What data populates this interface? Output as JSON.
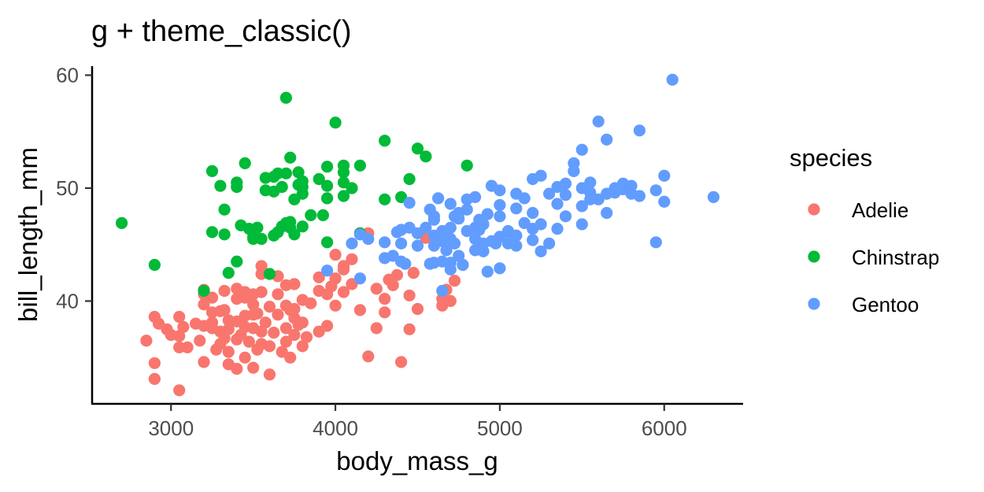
{
  "chart_data": {
    "type": "scatter",
    "title": "g + theme_classic()",
    "xlabel": "body_mass_g",
    "ylabel": "bill_length_mm",
    "xlim": [
      2520,
      6480
    ],
    "ylim": [
      30.9,
      60.8
    ],
    "xticks": [
      3000,
      4000,
      5000,
      6000
    ],
    "xtick_labels": [
      "3000",
      "4000",
      "5000",
      "6000"
    ],
    "yticks": [
      40,
      50,
      60
    ],
    "ytick_labels": [
      "40",
      "50",
      "60"
    ],
    "grid": false,
    "legend": {
      "title": "species",
      "position": "right"
    },
    "series": [
      {
        "name": "Adelie",
        "color": "#F8766D",
        "points": [
          [
            2850,
            36.5
          ],
          [
            2900,
            33.1
          ],
          [
            2900,
            34.5
          ],
          [
            2900,
            38.6
          ],
          [
            2925,
            38.0
          ],
          [
            2975,
            37.5
          ],
          [
            3000,
            37.0
          ],
          [
            3050,
            32.1
          ],
          [
            3050,
            35.9
          ],
          [
            3050,
            36.9
          ],
          [
            3050,
            38.6
          ],
          [
            3075,
            37.7
          ],
          [
            3100,
            35.9
          ],
          [
            3150,
            38.0
          ],
          [
            3175,
            36.5
          ],
          [
            3200,
            34.6
          ],
          [
            3200,
            37.8
          ],
          [
            3200,
            39.7
          ],
          [
            3200,
            40.6
          ],
          [
            3250,
            37.6
          ],
          [
            3250,
            38.1
          ],
          [
            3250,
            39.0
          ],
          [
            3250,
            40.3
          ],
          [
            3275,
            35.7
          ],
          [
            3300,
            36.2
          ],
          [
            3300,
            37.3
          ],
          [
            3300,
            39.1
          ],
          [
            3325,
            36.7
          ],
          [
            3325,
            39.2
          ],
          [
            3325,
            40.9
          ],
          [
            3350,
            34.4
          ],
          [
            3350,
            35.5
          ],
          [
            3350,
            37.5
          ],
          [
            3350,
            38.3
          ],
          [
            3400,
            34.0
          ],
          [
            3400,
            36.6
          ],
          [
            3400,
            38.2
          ],
          [
            3400,
            40.2
          ],
          [
            3400,
            41.1
          ],
          [
            3425,
            37.0
          ],
          [
            3450,
            35.0
          ],
          [
            3450,
            37.7
          ],
          [
            3450,
            38.7
          ],
          [
            3450,
            40.3
          ],
          [
            3475,
            36.4
          ],
          [
            3500,
            34.1
          ],
          [
            3500,
            37.6
          ],
          [
            3500,
            38.8
          ],
          [
            3500,
            39.7
          ],
          [
            3500,
            40.6
          ],
          [
            3525,
            35.7
          ],
          [
            3525,
            38.9
          ],
          [
            3550,
            36.2
          ],
          [
            3550,
            37.3
          ],
          [
            3550,
            40.8
          ],
          [
            3550,
            42.4
          ],
          [
            3575,
            38.1
          ],
          [
            3600,
            33.5
          ],
          [
            3600,
            36.0
          ],
          [
            3600,
            39.5
          ],
          [
            3625,
            37.2
          ],
          [
            3650,
            38.8
          ],
          [
            3650,
            40.6
          ],
          [
            3675,
            35.5
          ],
          [
            3700,
            36.4
          ],
          [
            3700,
            37.6
          ],
          [
            3700,
            39.6
          ],
          [
            3700,
            41.4
          ],
          [
            3725,
            39.2
          ],
          [
            3725,
            35.0
          ],
          [
            3750,
            37.0
          ],
          [
            3750,
            38.5
          ],
          [
            3750,
            39.3
          ],
          [
            3775,
            37.9
          ],
          [
            3800,
            36.0
          ],
          [
            3800,
            38.1
          ],
          [
            3800,
            40.1
          ],
          [
            3825,
            36.8
          ],
          [
            3850,
            39.8
          ],
          [
            3900,
            37.3
          ],
          [
            3900,
            40.9
          ],
          [
            3950,
            37.8
          ],
          [
            3950,
            40.6
          ],
          [
            3975,
            41.3
          ],
          [
            4000,
            39.6
          ],
          [
            4000,
            42.0
          ],
          [
            4050,
            40.8
          ],
          [
            4050,
            43.1
          ],
          [
            4100,
            41.5
          ],
          [
            4150,
            39.2
          ],
          [
            4200,
            35.1
          ],
          [
            4250,
            37.6
          ],
          [
            4300,
            39.0
          ],
          [
            4300,
            40.2
          ],
          [
            4350,
            41.4
          ],
          [
            4400,
            34.6
          ],
          [
            4450,
            37.5
          ],
          [
            4475,
            42.5
          ],
          [
            4550,
            45.6
          ],
          [
            4650,
            39.6
          ],
          [
            4675,
            41.0
          ],
          [
            4700,
            40.0
          ],
          [
            4725,
            41.8
          ],
          [
            4775,
            43.2
          ],
          [
            3200,
            41.0
          ],
          [
            3450,
            40.8
          ],
          [
            3550,
            43.1
          ],
          [
            3650,
            42.2
          ],
          [
            3750,
            41.5
          ],
          [
            3900,
            42.1
          ],
          [
            4000,
            44.1
          ],
          [
            4050,
            42.8
          ],
          [
            4100,
            43.7
          ],
          [
            4200,
            46.0
          ],
          [
            4250,
            41.1
          ],
          [
            4325,
            41.9
          ],
          [
            4375,
            42.3
          ],
          [
            4450,
            40.5
          ],
          [
            4500,
            39.3
          ],
          [
            4650,
            40.2
          ]
        ]
      },
      {
        "name": "Chinstrap",
        "color": "#00BA38",
        "points": [
          [
            2700,
            46.9
          ],
          [
            2900,
            43.2
          ],
          [
            3200,
            40.9
          ],
          [
            3250,
            46.1
          ],
          [
            3250,
            51.5
          ],
          [
            3300,
            50.2
          ],
          [
            3325,
            48.1
          ],
          [
            3325,
            45.9
          ],
          [
            3350,
            42.5
          ],
          [
            3400,
            43.5
          ],
          [
            3400,
            50.1
          ],
          [
            3400,
            50.5
          ],
          [
            3425,
            46.7
          ],
          [
            3450,
            52.2
          ],
          [
            3475,
            46.4
          ],
          [
            3500,
            45.5
          ],
          [
            3525,
            46.5
          ],
          [
            3550,
            45.5
          ],
          [
            3575,
            50.9
          ],
          [
            3600,
            42.4
          ],
          [
            3625,
            45.8
          ],
          [
            3625,
            49.7
          ],
          [
            3650,
            46.1
          ],
          [
            3650,
            51.3
          ],
          [
            3675,
            46.6
          ],
          [
            3675,
            50.1
          ],
          [
            3700,
            46.9
          ],
          [
            3700,
            51.3
          ],
          [
            3700,
            58.0
          ],
          [
            3725,
            47.0
          ],
          [
            3725,
            52.7
          ],
          [
            3750,
            45.9
          ],
          [
            3750,
            49.0
          ],
          [
            3775,
            51.4
          ],
          [
            3775,
            50.3
          ],
          [
            3800,
            49.5
          ],
          [
            3800,
            50.6
          ],
          [
            3800,
            46.6
          ],
          [
            3850,
            47.6
          ],
          [
            3900,
            50.8
          ],
          [
            3925,
            47.6
          ],
          [
            3950,
            45.2
          ],
          [
            3950,
            49.1
          ],
          [
            3950,
            51.9
          ],
          [
            4000,
            55.8
          ],
          [
            4050,
            50.5
          ],
          [
            4050,
            52.0
          ],
          [
            4050,
            49.3
          ],
          [
            4100,
            50.0
          ],
          [
            4150,
            52.0
          ],
          [
            4150,
            46.0
          ],
          [
            4300,
            49.0
          ],
          [
            4300,
            54.2
          ],
          [
            4400,
            49.2
          ],
          [
            4450,
            50.8
          ],
          [
            4500,
            53.5
          ],
          [
            4550,
            52.8
          ],
          [
            4800,
            52.0
          ],
          [
            3500,
            45.7
          ],
          [
            3725,
            46.5
          ],
          [
            3950,
            50.2
          ],
          [
            4050,
            51.4
          ],
          [
            3625,
            51.0
          ],
          [
            3800,
            50.1
          ],
          [
            3575,
            49.8
          ]
        ]
      },
      {
        "name": "Gentoo",
        "color": "#619CFF",
        "points": [
          [
            3950,
            42.7
          ],
          [
            4100,
            45.1
          ],
          [
            4150,
            42.0
          ],
          [
            4150,
            45.9
          ],
          [
            4200,
            45.5
          ],
          [
            4300,
            43.8
          ],
          [
            4300,
            45.2
          ],
          [
            4350,
            44.0
          ],
          [
            4375,
            46.1
          ],
          [
            4400,
            46.3
          ],
          [
            4400,
            45.1
          ],
          [
            4400,
            43.5
          ],
          [
            4425,
            43.3
          ],
          [
            4450,
            46.5
          ],
          [
            4450,
            48.7
          ],
          [
            4500,
            46.0
          ],
          [
            4500,
            44.9
          ],
          [
            4550,
            46.5
          ],
          [
            4575,
            43.3
          ],
          [
            4575,
            48.1
          ],
          [
            4600,
            43.4
          ],
          [
            4600,
            44.9
          ],
          [
            4600,
            45.8
          ],
          [
            4600,
            47.2
          ],
          [
            4625,
            45.4
          ],
          [
            4625,
            49.1
          ],
          [
            4650,
            40.9
          ],
          [
            4650,
            43.5
          ],
          [
            4650,
            45.3
          ],
          [
            4650,
            46.2
          ],
          [
            4675,
            44.5
          ],
          [
            4700,
            43.4
          ],
          [
            4700,
            45.5
          ],
          [
            4700,
            46.5
          ],
          [
            4700,
            42.8
          ],
          [
            4725,
            47.5
          ],
          [
            4725,
            45.1
          ],
          [
            4750,
            47.8
          ],
          [
            4750,
            44.0
          ],
          [
            4775,
            43.2
          ],
          [
            4800,
            46.2
          ],
          [
            4800,
            48.1
          ],
          [
            4850,
            44.5
          ],
          [
            4850,
            45.5
          ],
          [
            4850,
            46.5
          ],
          [
            4875,
            47.2
          ],
          [
            4900,
            46.8
          ],
          [
            4900,
            45.1
          ],
          [
            4900,
            44.4
          ],
          [
            4925,
            47.7
          ],
          [
            4925,
            42.6
          ],
          [
            4950,
            45.3
          ],
          [
            4975,
            45.1
          ],
          [
            5000,
            47.5
          ],
          [
            5000,
            45.7
          ],
          [
            5000,
            48.5
          ],
          [
            5000,
            42.9
          ],
          [
            5050,
            46.1
          ],
          [
            5050,
            45.1
          ],
          [
            5050,
            46.2
          ],
          [
            5100,
            45.8
          ],
          [
            5100,
            48.2
          ],
          [
            5100,
            44.9
          ],
          [
            5150,
            46.9
          ],
          [
            5150,
            49.1
          ],
          [
            5200,
            47.8
          ],
          [
            5200,
            50.8
          ],
          [
            5200,
            45.4
          ],
          [
            5250,
            44.4
          ],
          [
            5250,
            46.8
          ],
          [
            5300,
            49.5
          ],
          [
            5300,
            45.1
          ],
          [
            5350,
            48.6
          ],
          [
            5350,
            46.4
          ],
          [
            5400,
            50.4
          ],
          [
            5400,
            49.4
          ],
          [
            5400,
            47.5
          ],
          [
            5450,
            52.2
          ],
          [
            5500,
            48.4
          ],
          [
            5500,
            50.0
          ],
          [
            5500,
            53.4
          ],
          [
            5500,
            46.8
          ],
          [
            5550,
            49.6
          ],
          [
            5550,
            50.5
          ],
          [
            5600,
            55.9
          ],
          [
            5600,
            49.0
          ],
          [
            5650,
            49.5
          ],
          [
            5650,
            54.3
          ],
          [
            5650,
            47.8
          ],
          [
            5700,
            50.0
          ],
          [
            5700,
            49.6
          ],
          [
            5750,
            50.4
          ],
          [
            5800,
            50.2
          ],
          [
            5800,
            49.5
          ],
          [
            5850,
            55.1
          ],
          [
            5850,
            49.3
          ],
          [
            5950,
            45.2
          ],
          [
            5950,
            49.8
          ],
          [
            6000,
            51.1
          ],
          [
            6000,
            48.8
          ],
          [
            6050,
            59.6
          ],
          [
            6300,
            49.2
          ],
          [
            5250,
            51.1
          ],
          [
            5100,
            49.5
          ],
          [
            4950,
            50.2
          ],
          [
            4800,
            49.0
          ],
          [
            4650,
            46.0
          ],
          [
            4750,
            47.3
          ],
          [
            4875,
            46.3
          ],
          [
            5200,
            46.4
          ],
          [
            5350,
            50.1
          ],
          [
            5450,
            51.5
          ],
          [
            5550,
            49.0
          ],
          [
            5750,
            49.9
          ],
          [
            4600,
            47.5
          ],
          [
            4700,
            48.6
          ],
          [
            4850,
            49.2
          ],
          [
            5000,
            49.8
          ]
        ]
      }
    ]
  }
}
